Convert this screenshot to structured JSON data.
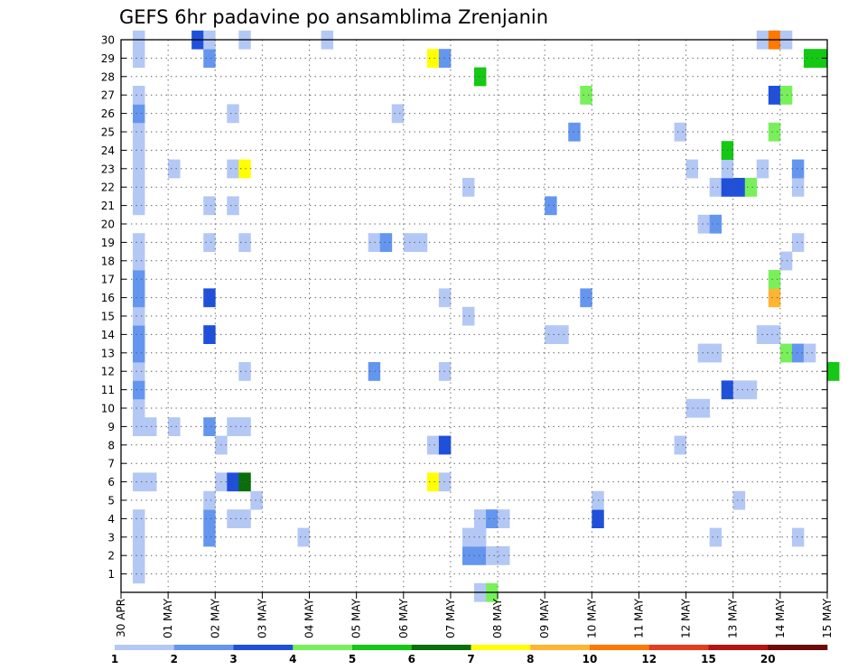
{
  "chart_data": {
    "type": "heatmap",
    "title": "GEFS 6hr padavine po ansamblima Zrenjanin",
    "xlabel": "",
    "ylabel": "",
    "x_tick_labels": [
      "30 APR",
      "01 MAY",
      "02 MAY",
      "03 MAY",
      "04 MAY",
      "05 MAY",
      "06 MAY",
      "07 MAY",
      "08 MAY",
      "09 MAY",
      "10 MAY",
      "11 MAY",
      "12 MAY",
      "13 MAY",
      "14 MAY",
      "15 MAY"
    ],
    "y_tick_labels": [
      "1",
      "2",
      "3",
      "4",
      "5",
      "6",
      "7",
      "8",
      "9",
      "10",
      "11",
      "12",
      "13",
      "14",
      "15",
      "16",
      "17",
      "18",
      "19",
      "20",
      "21",
      "22",
      "23",
      "24",
      "25",
      "26",
      "27",
      "28",
      "29",
      "30"
    ],
    "y_range": [
      0,
      30
    ],
    "x_range_days": [
      0,
      15
    ],
    "grid": true,
    "color_levels": [
      "1",
      "2",
      "3",
      "4",
      "5",
      "6",
      "7",
      "8",
      "10",
      "12",
      "15",
      "20"
    ],
    "colors": [
      "#b4c8f5",
      "#6496f0",
      "#1e50dc",
      "#78f05a",
      "#14c814",
      "#0a6e0a",
      "#ffff00",
      "#ffb432",
      "#ff7800",
      "#e63c1e",
      "#b41414",
      "#6e0a0a"
    ],
    "cells": [
      {
        "m": 1,
        "t": 0.25,
        "c": 1
      },
      {
        "m": 2,
        "t": 0.25,
        "c": 1
      },
      {
        "m": 2,
        "t": 7.25,
        "c": 2
      },
      {
        "m": 2,
        "t": 7.5,
        "c": 2
      },
      {
        "m": 2,
        "t": 7.75,
        "c": 1
      },
      {
        "m": 2,
        "t": 8,
        "c": 1
      },
      {
        "m": 3,
        "t": 0.25,
        "c": 1
      },
      {
        "m": 3,
        "t": 1.75,
        "c": 2
      },
      {
        "m": 3,
        "t": 3.75,
        "c": 1
      },
      {
        "m": 3,
        "t": 7.25,
        "c": 1
      },
      {
        "m": 3,
        "t": 7.5,
        "c": 1
      },
      {
        "m": 3,
        "t": 12.5,
        "c": 1
      },
      {
        "m": 3,
        "t": 14.25,
        "c": 1
      },
      {
        "m": 4,
        "t": 0.25,
        "c": 1
      },
      {
        "m": 4,
        "t": 1.75,
        "c": 2
      },
      {
        "m": 4,
        "t": 2.25,
        "c": 1
      },
      {
        "m": 4,
        "t": 2.5,
        "c": 1
      },
      {
        "m": 4,
        "t": 7.5,
        "c": 1
      },
      {
        "m": 4,
        "t": 7.75,
        "c": 2
      },
      {
        "m": 4,
        "t": 8,
        "c": 1
      },
      {
        "m": 4,
        "t": 10,
        "c": 3
      },
      {
        "m": 5,
        "t": 1.75,
        "c": 1
      },
      {
        "m": 5,
        "t": 2.75,
        "c": 1
      },
      {
        "m": 5,
        "t": 10,
        "c": 1
      },
      {
        "m": 5,
        "t": 13,
        "c": 1
      },
      {
        "m": 6,
        "t": 0.25,
        "c": 1
      },
      {
        "m": 6,
        "t": 0.5,
        "c": 1
      },
      {
        "m": 6,
        "t": 2,
        "c": 1
      },
      {
        "m": 6,
        "t": 2.25,
        "c": 3
      },
      {
        "m": 6,
        "t": 2.5,
        "c": 6
      },
      {
        "m": 6,
        "t": 6.5,
        "c": 7
      },
      {
        "m": 6,
        "t": 6.75,
        "c": 1
      },
      {
        "m": 8,
        "t": 2,
        "c": 1
      },
      {
        "m": 8,
        "t": 6.5,
        "c": 1
      },
      {
        "m": 8,
        "t": 6.75,
        "c": 3
      },
      {
        "m": 8,
        "t": 11.75,
        "c": 1
      },
      {
        "m": 9,
        "t": 0.25,
        "c": 1
      },
      {
        "m": 9,
        "t": 0.5,
        "c": 1
      },
      {
        "m": 9,
        "t": 1,
        "c": 1
      },
      {
        "m": 9,
        "t": 1.75,
        "c": 2
      },
      {
        "m": 9,
        "t": 2.25,
        "c": 1
      },
      {
        "m": 9,
        "t": 2.5,
        "c": 1
      },
      {
        "m": 10,
        "t": 0.25,
        "c": 1
      },
      {
        "m": 10,
        "t": 12,
        "c": 1
      },
      {
        "m": 10,
        "t": 12.25,
        "c": 1
      },
      {
        "m": 11,
        "t": 0.25,
        "c": 2
      },
      {
        "m": 11,
        "t": 12.75,
        "c": 3
      },
      {
        "m": 11,
        "t": 13,
        "c": 1
      },
      {
        "m": 11,
        "t": 13.25,
        "c": 1
      },
      {
        "m": 12,
        "t": 0.25,
        "c": 1
      },
      {
        "m": 12,
        "t": 2.5,
        "c": 1
      },
      {
        "m": 12,
        "t": 5.25,
        "c": 2
      },
      {
        "m": 12,
        "t": 6.75,
        "c": 1
      },
      {
        "m": 12,
        "t": 15,
        "c": 5
      },
      {
        "m": 13,
        "t": 0.25,
        "c": 2
      },
      {
        "m": 13,
        "t": 12.25,
        "c": 1
      },
      {
        "m": 13,
        "t": 12.5,
        "c": 1
      },
      {
        "m": 13,
        "t": 14,
        "c": 4
      },
      {
        "m": 13,
        "t": 14.25,
        "c": 2
      },
      {
        "m": 13,
        "t": 14.5,
        "c": 1
      },
      {
        "m": 14,
        "t": 0.25,
        "c": 2
      },
      {
        "m": 14,
        "t": 1.75,
        "c": 3
      },
      {
        "m": 14,
        "t": 9,
        "c": 1
      },
      {
        "m": 14,
        "t": 9.25,
        "c": 1
      },
      {
        "m": 14,
        "t": 13.5,
        "c": 1
      },
      {
        "m": 14,
        "t": 13.75,
        "c": 1
      },
      {
        "m": 15,
        "t": 0.25,
        "c": 1
      },
      {
        "m": 15,
        "t": 7.25,
        "c": 1
      },
      {
        "m": 16,
        "t": 0.25,
        "c": 2
      },
      {
        "m": 16,
        "t": 1.75,
        "c": 3
      },
      {
        "m": 16,
        "t": 6.75,
        "c": 1
      },
      {
        "m": 16,
        "t": 9.75,
        "c": 2
      },
      {
        "m": 16,
        "t": 13.75,
        "c": 8
      },
      {
        "m": 17,
        "t": 0.25,
        "c": 2
      },
      {
        "m": 17,
        "t": 13.75,
        "c": 4
      },
      {
        "m": 18,
        "t": 0.25,
        "c": 1
      },
      {
        "m": 18,
        "t": 14,
        "c": 1
      },
      {
        "m": 19,
        "t": 0.25,
        "c": 1
      },
      {
        "m": 19,
        "t": 1.75,
        "c": 1
      },
      {
        "m": 19,
        "t": 2.5,
        "c": 1
      },
      {
        "m": 19,
        "t": 5.25,
        "c": 1
      },
      {
        "m": 19,
        "t": 5.5,
        "c": 2
      },
      {
        "m": 19,
        "t": 6,
        "c": 1
      },
      {
        "m": 19,
        "t": 6.25,
        "c": 1
      },
      {
        "m": 19,
        "t": 14.25,
        "c": 1
      },
      {
        "m": 20,
        "t": 12.25,
        "c": 1
      },
      {
        "m": 20,
        "t": 12.5,
        "c": 2
      },
      {
        "m": 21,
        "t": 0.25,
        "c": 1
      },
      {
        "m": 21,
        "t": 1.75,
        "c": 1
      },
      {
        "m": 21,
        "t": 2.25,
        "c": 1
      },
      {
        "m": 21,
        "t": 9,
        "c": 2
      },
      {
        "m": 22,
        "t": 0.25,
        "c": 1
      },
      {
        "m": 22,
        "t": 7.25,
        "c": 1
      },
      {
        "m": 22,
        "t": 12.5,
        "c": 1
      },
      {
        "m": 22,
        "t": 12.75,
        "c": 3
      },
      {
        "m": 22,
        "t": 13,
        "c": 3
      },
      {
        "m": 22,
        "t": 13.25,
        "c": 4
      },
      {
        "m": 22,
        "t": 14.25,
        "c": 1
      },
      {
        "m": 23,
        "t": 0.25,
        "c": 1
      },
      {
        "m": 23,
        "t": 1,
        "c": 1
      },
      {
        "m": 23,
        "t": 2.25,
        "c": 1
      },
      {
        "m": 23,
        "t": 2.5,
        "c": 7
      },
      {
        "m": 23,
        "t": 12,
        "c": 1
      },
      {
        "m": 23,
        "t": 12.75,
        "c": 1
      },
      {
        "m": 23,
        "t": 13.5,
        "c": 1
      },
      {
        "m": 23,
        "t": 14.25,
        "c": 2
      },
      {
        "m": 24,
        "t": 0.25,
        "c": 1
      },
      {
        "m": 24,
        "t": 12.75,
        "c": 5
      },
      {
        "m": 25,
        "t": 0.25,
        "c": 1
      },
      {
        "m": 25,
        "t": 9.5,
        "c": 2
      },
      {
        "m": 25,
        "t": 11.75,
        "c": 1
      },
      {
        "m": 25,
        "t": 13.75,
        "c": 4
      },
      {
        "m": 26,
        "t": 0.25,
        "c": 2
      },
      {
        "m": 26,
        "t": 2.25,
        "c": 1
      },
      {
        "m": 26,
        "t": 5.75,
        "c": 1
      },
      {
        "m": 27,
        "t": 0.25,
        "c": 1
      },
      {
        "m": 27,
        "t": 9.75,
        "c": 4
      },
      {
        "m": 27,
        "t": 13.75,
        "c": 3
      },
      {
        "m": 27,
        "t": 14,
        "c": 4
      },
      {
        "m": 28,
        "t": 7.5,
        "c": 5
      },
      {
        "m": 29,
        "t": 0.25,
        "c": 1
      },
      {
        "m": 29,
        "t": 1.75,
        "c": 2
      },
      {
        "m": 29,
        "t": 6.5,
        "c": 7
      },
      {
        "m": 29,
        "t": 6.75,
        "c": 2
      },
      {
        "m": 29,
        "t": 14.5,
        "c": 5
      },
      {
        "m": 29,
        "t": 14.75,
        "c": 5
      },
      {
        "m": 30,
        "t": 0.25,
        "c": 1
      },
      {
        "m": 30,
        "t": 1.5,
        "c": 3
      },
      {
        "m": 30,
        "t": 1.75,
        "c": 1
      },
      {
        "m": 30,
        "t": 2.5,
        "c": 1
      },
      {
        "m": 30,
        "t": 4.25,
        "c": 1
      },
      {
        "m": 30,
        "t": 13.5,
        "c": 1
      },
      {
        "m": 30,
        "t": 13.75,
        "c": 9
      },
      {
        "m": 30,
        "t": 14,
        "c": 1
      },
      {
        "m": 0,
        "t": 7.5,
        "c": 1
      },
      {
        "m": 0,
        "t": 7.75,
        "c": 4
      }
    ]
  }
}
